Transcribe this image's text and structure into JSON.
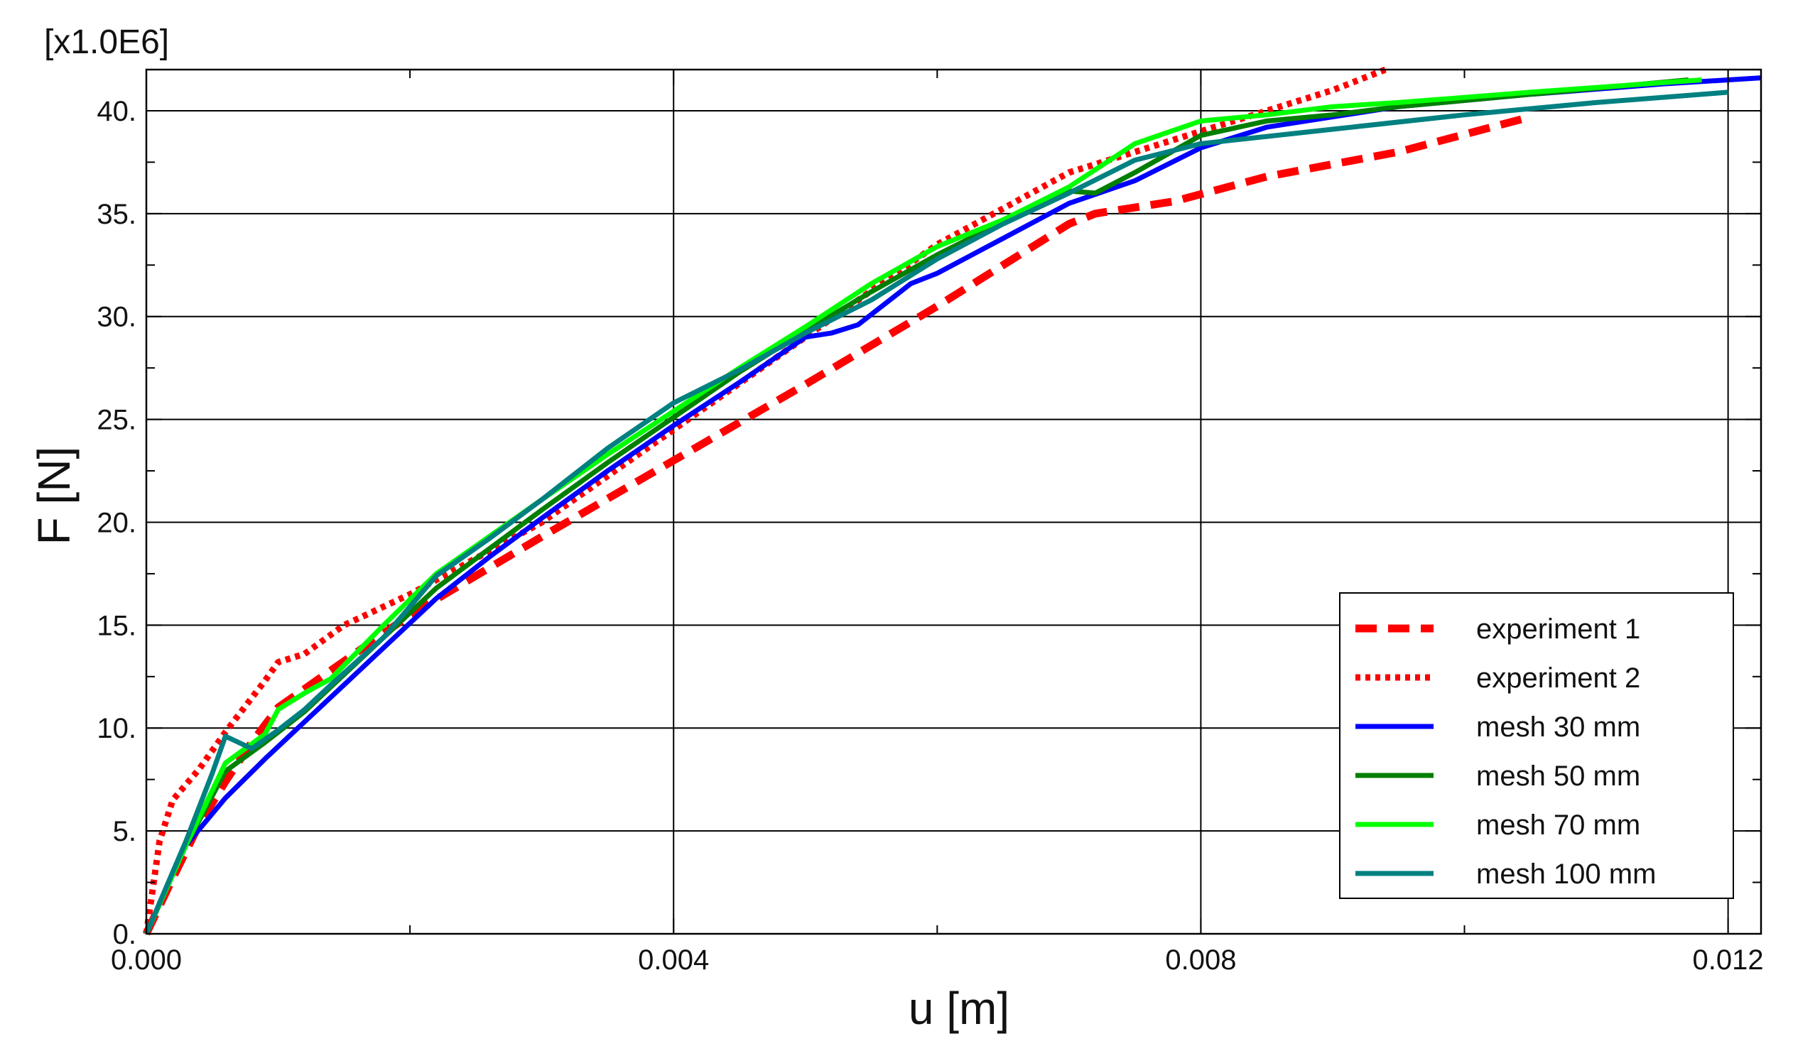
{
  "chart_data": {
    "type": "line",
    "title": "",
    "xlabel": "u [m]",
    "ylabel": "F [N]",
    "y_multiplier_label": "[x1.0E6]",
    "xlim": [
      0.0,
      0.01225
    ],
    "ylim": [
      0.0,
      42.0
    ],
    "grid": true,
    "legend_position": "bottom-right",
    "x_ticks": [
      0.0,
      0.004,
      0.008,
      0.012
    ],
    "x_tick_labels": [
      "0.000",
      "0.004",
      "0.008",
      "0.012"
    ],
    "x_minor_ticks": [
      0.002,
      0.006,
      0.01
    ],
    "y_ticks": [
      0,
      5,
      10,
      15,
      20,
      25,
      30,
      35,
      40
    ],
    "y_tick_labels": [
      "0.",
      "5.",
      "10.",
      "15.",
      "20.",
      "25.",
      "30.",
      "35.",
      "40."
    ],
    "y_minor_ticks": [
      2.5,
      7.5,
      12.5,
      17.5,
      22.5,
      27.5,
      32.5,
      37.5
    ],
    "series": [
      {
        "name": "experiment 1",
        "color": "#ff0000",
        "style": "dashed",
        "x": [
          0.0,
          0.0002,
          0.0004,
          0.0006,
          0.0008,
          0.001,
          0.0014,
          0.002,
          0.003,
          0.004,
          0.005,
          0.006,
          0.007,
          0.0072,
          0.0078,
          0.0085,
          0.0095,
          0.0105
        ],
        "y": [
          0.0,
          2.7,
          5.3,
          7.4,
          9.3,
          11.0,
          12.8,
          15.5,
          19.3,
          23.0,
          26.7,
          30.5,
          34.5,
          35.0,
          35.6,
          36.8,
          38.0,
          39.7
        ]
      },
      {
        "name": "experiment 2",
        "color": "#ff0000",
        "style": "dotted",
        "x": [
          0.0,
          0.0001,
          0.0002,
          0.0004,
          0.0006,
          0.0009,
          0.001,
          0.0012,
          0.0015,
          0.002,
          0.003,
          0.004,
          0.005,
          0.006,
          0.007,
          0.008,
          0.0085,
          0.009,
          0.0094
        ],
        "y": [
          0.0,
          4.5,
          6.5,
          8.0,
          9.8,
          12.3,
          13.2,
          13.6,
          15.0,
          16.5,
          20.0,
          24.5,
          29.0,
          33.5,
          37.0,
          39.0,
          40.0,
          41.0,
          42.0
        ]
      },
      {
        "name": "mesh 30 mm",
        "color": "#0000ff",
        "style": "solid",
        "x": [
          0.0,
          0.0003,
          0.0006,
          0.0009,
          0.0012,
          0.0015,
          0.0018,
          0.0022,
          0.0026,
          0.003,
          0.0035,
          0.004,
          0.0045,
          0.005,
          0.0052,
          0.0054,
          0.0058,
          0.006,
          0.0065,
          0.007,
          0.0075,
          0.008,
          0.0085,
          0.009,
          0.0095,
          0.0105,
          0.0115,
          0.01225
        ],
        "y": [
          0.0,
          4.3,
          6.6,
          8.5,
          10.3,
          12.1,
          13.9,
          16.3,
          18.3,
          20.2,
          22.5,
          24.7,
          26.8,
          29.0,
          29.2,
          29.6,
          31.6,
          32.1,
          33.8,
          35.5,
          36.6,
          38.2,
          39.2,
          39.7,
          40.2,
          40.8,
          41.3,
          41.6
        ]
      },
      {
        "name": "mesh 50 mm",
        "color": "#007f00",
        "style": "solid",
        "x": [
          0.0,
          0.0003,
          0.0006,
          0.0009,
          0.0012,
          0.0015,
          0.0018,
          0.0022,
          0.0026,
          0.003,
          0.0035,
          0.004,
          0.0045,
          0.005,
          0.0055,
          0.006,
          0.0065,
          0.007,
          0.0072,
          0.0075,
          0.008,
          0.0085,
          0.009,
          0.0095,
          0.0105,
          0.0117
        ],
        "y": [
          0.0,
          4.3,
          7.9,
          9.3,
          10.8,
          12.6,
          14.4,
          16.8,
          18.7,
          20.6,
          22.9,
          25.1,
          27.3,
          29.3,
          31.2,
          33.0,
          34.6,
          36.1,
          36.0,
          37.0,
          38.8,
          39.5,
          39.8,
          40.2,
          40.8,
          41.5
        ]
      },
      {
        "name": "mesh 70 mm",
        "color": "#00ff00",
        "style": "solid",
        "x": [
          0.0,
          0.0003,
          0.0006,
          0.0009,
          0.001,
          0.0012,
          0.0014,
          0.0018,
          0.0022,
          0.0026,
          0.003,
          0.0035,
          0.004,
          0.0045,
          0.005,
          0.0055,
          0.006,
          0.0065,
          0.007,
          0.0075,
          0.008,
          0.0085,
          0.009,
          0.0095,
          0.0105,
          0.0118
        ],
        "y": [
          0.0,
          4.3,
          8.3,
          9.7,
          10.9,
          11.7,
          12.4,
          15.0,
          17.5,
          19.3,
          21.1,
          23.3,
          25.4,
          27.5,
          29.5,
          31.6,
          33.4,
          34.7,
          36.3,
          38.4,
          39.5,
          39.8,
          40.2,
          40.4,
          40.9,
          41.5
        ]
      },
      {
        "name": "mesh 100 mm",
        "color": "#008080",
        "style": "solid",
        "x": [
          0.0,
          0.0003,
          0.0005,
          0.0006,
          0.0007,
          0.0008,
          0.001,
          0.0012,
          0.0014,
          0.0018,
          0.0022,
          0.0026,
          0.003,
          0.0035,
          0.004,
          0.0045,
          0.005,
          0.0055,
          0.006,
          0.0065,
          0.007,
          0.0075,
          0.008,
          0.009,
          0.01,
          0.011,
          0.012
        ],
        "y": [
          0.0,
          4.5,
          7.8,
          9.6,
          9.3,
          9.0,
          9.9,
          10.9,
          12.1,
          14.4,
          17.4,
          19.2,
          21.1,
          23.6,
          25.8,
          27.4,
          29.2,
          30.8,
          32.8,
          34.5,
          36.0,
          37.6,
          38.4,
          39.1,
          39.8,
          40.4,
          40.9
        ]
      }
    ]
  }
}
